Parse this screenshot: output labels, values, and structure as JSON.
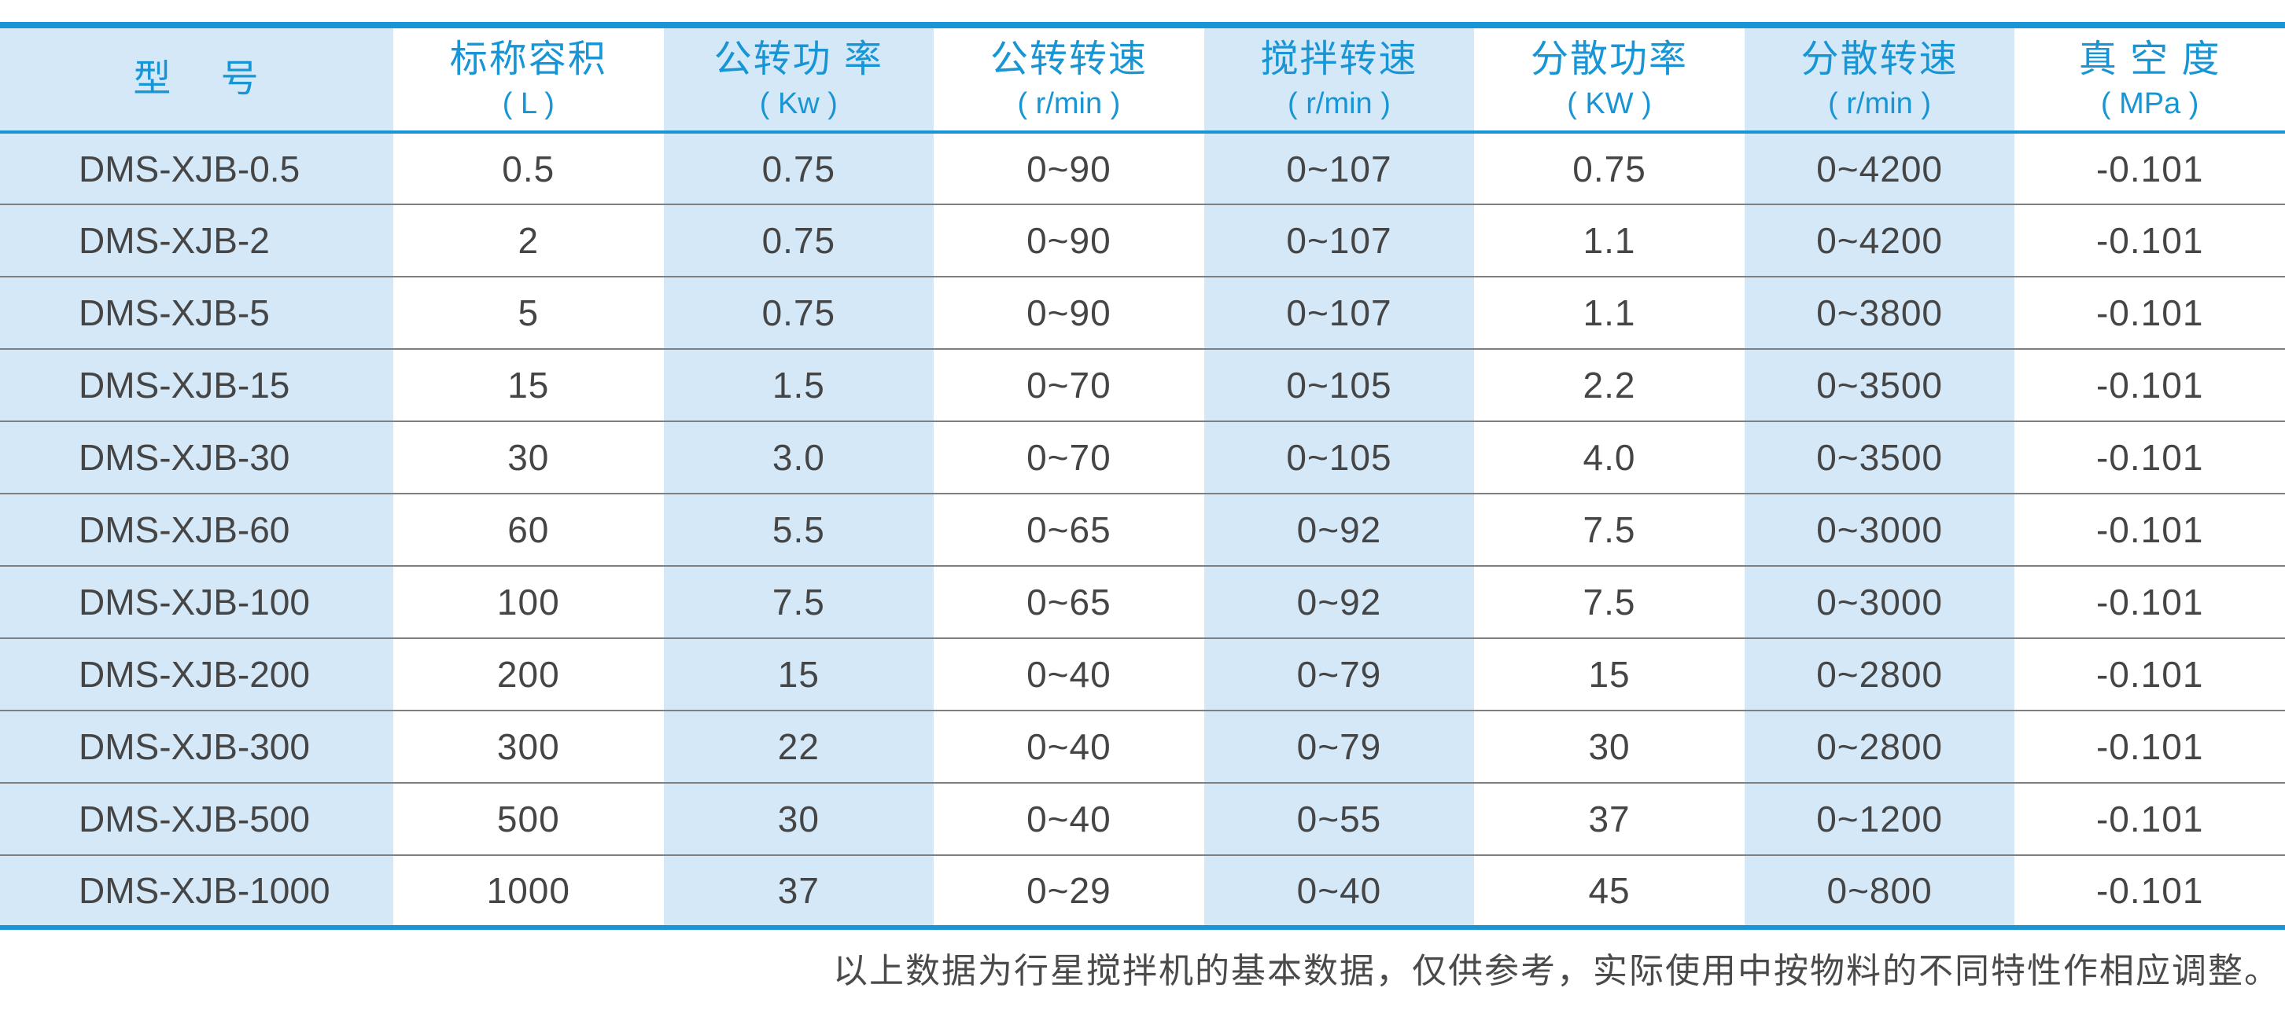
{
  "colors": {
    "accent": "#1795d4",
    "stripe": "#d4e8f7",
    "separator": "#7f7f7f",
    "data_text": "#454545"
  },
  "table": {
    "columns": [
      {
        "title": "型    号",
        "unit": ""
      },
      {
        "title": "标称容积",
        "unit": "( L )"
      },
      {
        "title": "公转功 率",
        "unit": "( Kw )"
      },
      {
        "title": "公转转速",
        "unit": "( r/min )"
      },
      {
        "title": "搅拌转速",
        "unit": "( r/min )"
      },
      {
        "title": "分散功率",
        "unit": "( KW )"
      },
      {
        "title": "分散转速",
        "unit": "( r/min )"
      },
      {
        "title": "真 空 度",
        "unit": "( MPa )"
      }
    ],
    "rows": [
      [
        "DMS-XJB-0.5",
        "0.5",
        "0.75",
        "0~90",
        "0~107",
        "0.75",
        "0~4200",
        "-0.101"
      ],
      [
        "DMS-XJB-2",
        "2",
        "0.75",
        "0~90",
        "0~107",
        "1.1",
        "0~4200",
        "-0.101"
      ],
      [
        "DMS-XJB-5",
        "5",
        "0.75",
        "0~90",
        "0~107",
        "1.1",
        "0~3800",
        "-0.101"
      ],
      [
        "DMS-XJB-15",
        "15",
        "1.5",
        "0~70",
        "0~105",
        "2.2",
        "0~3500",
        "-0.101"
      ],
      [
        "DMS-XJB-30",
        "30",
        "3.0",
        "0~70",
        "0~105",
        "4.0",
        "0~3500",
        "-0.101"
      ],
      [
        "DMS-XJB-60",
        "60",
        "5.5",
        "0~65",
        "0~92",
        "7.5",
        "0~3000",
        "-0.101"
      ],
      [
        "DMS-XJB-100",
        "100",
        "7.5",
        "0~65",
        "0~92",
        "7.5",
        "0~3000",
        "-0.101"
      ],
      [
        "DMS-XJB-200",
        "200",
        "15",
        "0~40",
        "0~79",
        "15",
        "0~2800",
        "-0.101"
      ],
      [
        "DMS-XJB-300",
        "300",
        "22",
        "0~40",
        "0~79",
        "30",
        "0~2800",
        "-0.101"
      ],
      [
        "DMS-XJB-500",
        "500",
        "30",
        "0~40",
        "0~55",
        "37",
        "0~1200",
        "-0.101"
      ],
      [
        "DMS-XJB-1000",
        "1000",
        "37",
        "0~29",
        "0~40",
        "45",
        "0~800",
        "-0.101"
      ]
    ]
  },
  "footnote": "以上数据为行星搅拌机的基本数据，仅供参考，实际使用中按物料的不同特性作相应调整。"
}
